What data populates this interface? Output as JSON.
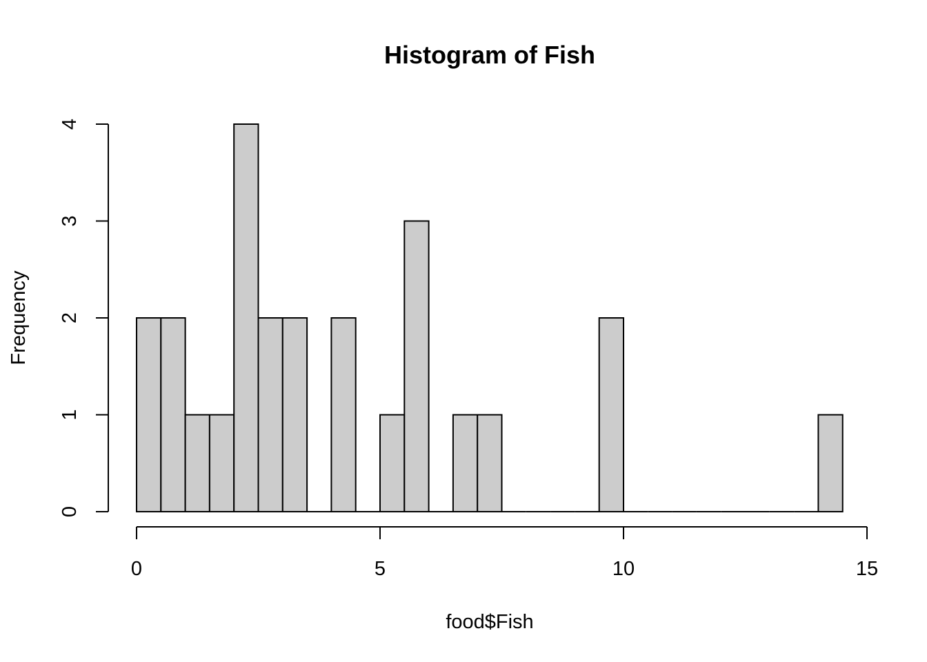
{
  "chart_data": {
    "type": "bar",
    "subtype": "histogram",
    "title": "Histogram of Fish",
    "xlabel": "food$Fish",
    "ylabel": "Frequency",
    "bin_width": 0.5,
    "bins": [
      {
        "x0": 0.0,
        "x1": 0.5,
        "count": 2
      },
      {
        "x0": 0.5,
        "x1": 1.0,
        "count": 2
      },
      {
        "x0": 1.0,
        "x1": 1.5,
        "count": 1
      },
      {
        "x0": 1.5,
        "x1": 2.0,
        "count": 1
      },
      {
        "x0": 2.0,
        "x1": 2.5,
        "count": 4
      },
      {
        "x0": 2.5,
        "x1": 3.0,
        "count": 2
      },
      {
        "x0": 3.0,
        "x1": 3.5,
        "count": 2
      },
      {
        "x0": 3.5,
        "x1": 4.0,
        "count": 0
      },
      {
        "x0": 4.0,
        "x1": 4.5,
        "count": 2
      },
      {
        "x0": 4.5,
        "x1": 5.0,
        "count": 0
      },
      {
        "x0": 5.0,
        "x1": 5.5,
        "count": 1
      },
      {
        "x0": 5.5,
        "x1": 6.0,
        "count": 3
      },
      {
        "x0": 6.0,
        "x1": 6.5,
        "count": 0
      },
      {
        "x0": 6.5,
        "x1": 7.0,
        "count": 1
      },
      {
        "x0": 7.0,
        "x1": 7.5,
        "count": 1
      },
      {
        "x0": 7.5,
        "x1": 8.0,
        "count": 0
      },
      {
        "x0": 8.0,
        "x1": 8.5,
        "count": 0
      },
      {
        "x0": 8.5,
        "x1": 9.0,
        "count": 0
      },
      {
        "x0": 9.0,
        "x1": 9.5,
        "count": 0
      },
      {
        "x0": 9.5,
        "x1": 10.0,
        "count": 2
      },
      {
        "x0": 10.0,
        "x1": 10.5,
        "count": 0
      },
      {
        "x0": 10.5,
        "x1": 11.0,
        "count": 0
      },
      {
        "x0": 11.0,
        "x1": 11.5,
        "count": 0
      },
      {
        "x0": 11.5,
        "x1": 12.0,
        "count": 0
      },
      {
        "x0": 12.0,
        "x1": 12.5,
        "count": 0
      },
      {
        "x0": 12.5,
        "x1": 13.0,
        "count": 0
      },
      {
        "x0": 13.0,
        "x1": 13.5,
        "count": 0
      },
      {
        "x0": 13.5,
        "x1": 14.0,
        "count": 0
      },
      {
        "x0": 14.0,
        "x1": 14.5,
        "count": 1
      }
    ],
    "xlim": [
      0,
      15
    ],
    "ylim": [
      0,
      4
    ],
    "xticks": [
      0,
      5,
      10,
      15
    ],
    "xtick_labels": [
      "0",
      "5",
      "10",
      "15"
    ],
    "yticks": [
      0,
      1,
      2,
      3,
      4
    ],
    "ytick_labels": [
      "0",
      "1",
      "2",
      "3",
      "4"
    ],
    "grid": false,
    "legend": false,
    "colors": {
      "bar_fill": "#cccccc",
      "bar_stroke": "#000000",
      "axis": "#000000",
      "background": "#ffffff"
    }
  }
}
